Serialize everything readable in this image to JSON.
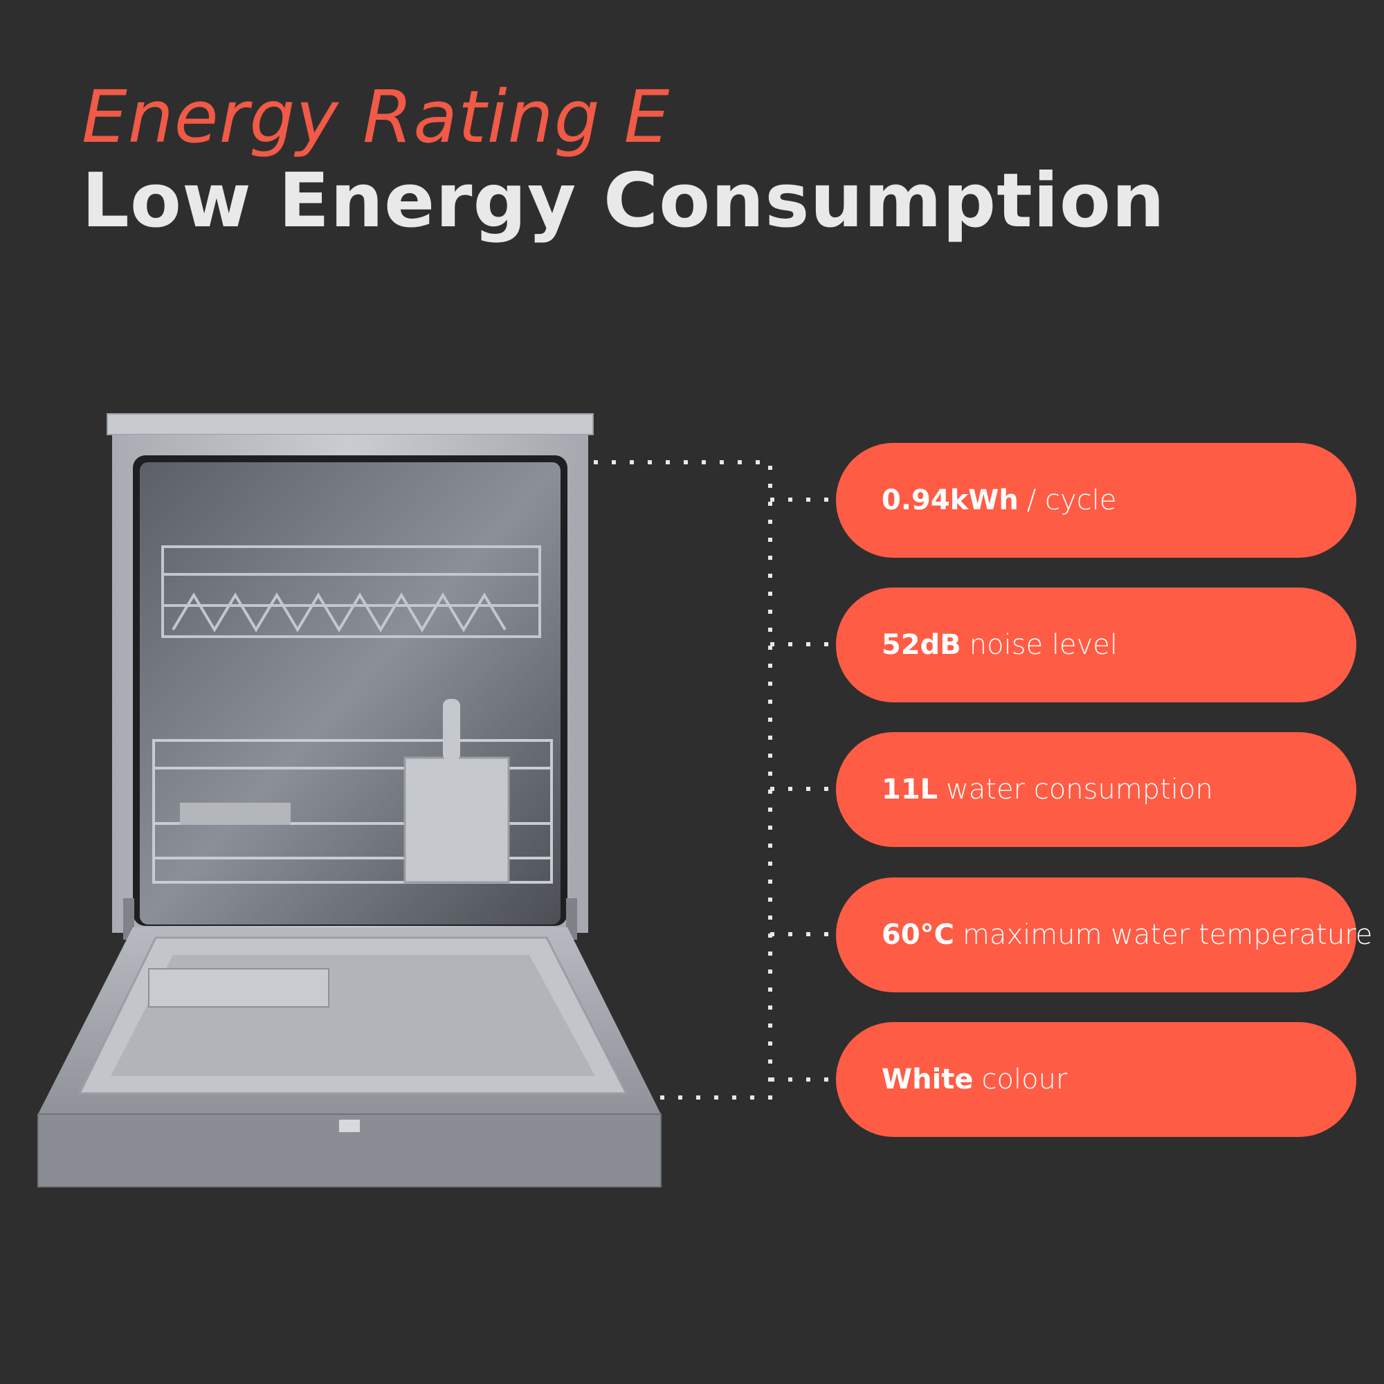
{
  "header": {
    "subtitle": "Energy Rating E",
    "title": "Low Energy Consumption"
  },
  "product": {
    "image": "dishwasher-open-door-illustration"
  },
  "features": [
    {
      "value": "0.94kWh",
      "label": "/ cycle"
    },
    {
      "value": "52dB",
      "label": "noise level"
    },
    {
      "value": "11L",
      "label": "water consumption"
    },
    {
      "value": "60°C",
      "label": "maximum water temperature"
    },
    {
      "value": "White",
      "label": "colour"
    }
  ],
  "colors": {
    "background": "#2e2e2e",
    "accent": "#ff5c45",
    "subtitle": "#f05a46",
    "title": "#e9e9e9"
  }
}
